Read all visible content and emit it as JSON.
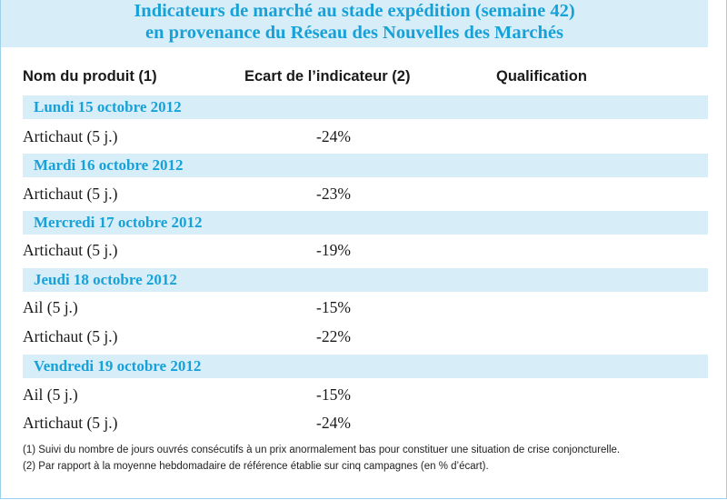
{
  "title": {
    "line1": "Indicateurs de marché au stade expédition (semaine 42)",
    "line2": "en provenance du Réseau des Nouvelles des Marchés"
  },
  "columns": {
    "product": "Nom du produit (1)",
    "ecart": "Ecart de l’indicateur (2)",
    "qualification": "Qualification"
  },
  "days": [
    {
      "date": "Lundi 15 octobre 2012",
      "rows": [
        {
          "product": "Artichaut (5 j.)",
          "ecart": "-24%",
          "qualification": ""
        }
      ]
    },
    {
      "date": "Mardi 16 octobre 2012",
      "rows": [
        {
          "product": "Artichaut (5 j.)",
          "ecart": "-23%",
          "qualification": ""
        }
      ]
    },
    {
      "date": "Mercredi 17 octobre 2012",
      "rows": [
        {
          "product": "Artichaut (5 j.)",
          "ecart": "-19%",
          "qualification": ""
        }
      ]
    },
    {
      "date": "Jeudi 18 octobre 2012",
      "rows": [
        {
          "product": "Ail (5 j.)",
          "ecart": "-15%",
          "qualification": ""
        },
        {
          "product": "Artichaut (5 j.)",
          "ecart": "-22%",
          "qualification": ""
        }
      ]
    },
    {
      "date": "Vendredi 19 octobre 2012",
      "rows": [
        {
          "product": "Ail (5 j.)",
          "ecart": "-15%",
          "qualification": ""
        },
        {
          "product": "Artichaut (5 j.)",
          "ecart": "-24%",
          "qualification": ""
        }
      ]
    }
  ],
  "footnotes": [
    "(1) Suivi du nombre de jours ouvrés consécutifs à un prix anormalement bas pour constituer une situation de crise conjoncturelle.",
    "(2) Par rapport à la moyenne hebdomadaire de référence établie sur cinq campagnes (en % d’écart)."
  ],
  "colors": {
    "accent": "#17a1d9",
    "band": "#d7eef9"
  }
}
